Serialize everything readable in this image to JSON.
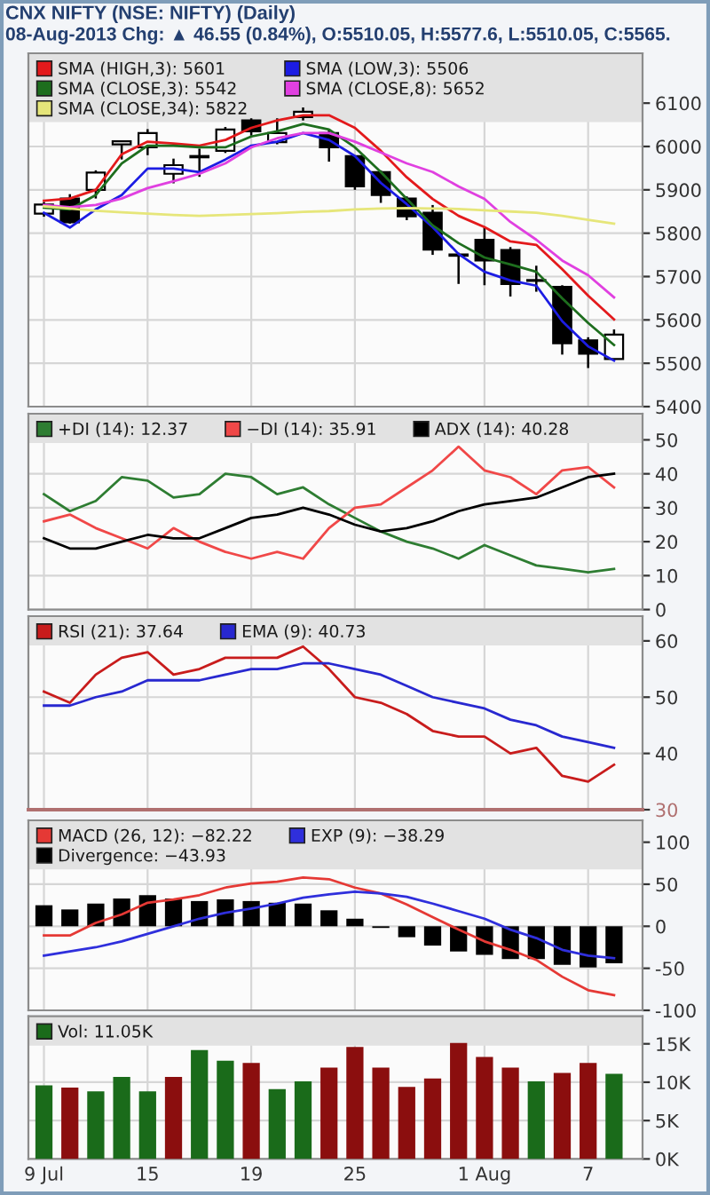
{
  "chart_data": [
    {
      "type": "candlestick",
      "title": "CNX NIFTY (NSE: NIFTY) (Daily)",
      "subtitle": "08-Aug-2013 Chg: ▲ 46.55 (0.84%), O:5510.05, H:5577.6, L:5510.05, C:5565.",
      "categories": [
        null,
        null,
        null,
        null,
        null,
        null,
        null,
        null,
        null,
        null,
        null,
        null,
        null,
        null,
        null,
        null,
        null,
        null,
        null,
        null,
        null,
        null,
        null
      ],
      "ohlc": [
        [
          5845,
          5872,
          5838,
          5866
        ],
        [
          5880,
          5890,
          5822,
          5825
        ],
        [
          5900,
          5945,
          5880,
          5940
        ],
        [
          6005,
          6012,
          5970,
          6012
        ],
        [
          5998,
          6040,
          5980,
          6031
        ],
        [
          5937,
          5972,
          5915,
          5957
        ],
        [
          5975,
          5995,
          5930,
          5978
        ],
        [
          5990,
          6045,
          5985,
          6039
        ],
        [
          6060,
          6065,
          6025,
          6035
        ],
        [
          6010,
          6065,
          6005,
          6031
        ],
        [
          6068,
          6090,
          6060,
          6080
        ],
        [
          6031,
          6040,
          5965,
          5998
        ],
        [
          5978,
          5978,
          5900,
          5908
        ],
        [
          5941,
          5945,
          5870,
          5888
        ],
        [
          5880,
          5885,
          5830,
          5839
        ],
        [
          5847,
          5865,
          5750,
          5762
        ],
        [
          5751,
          5755,
          5683,
          5748
        ],
        [
          5785,
          5815,
          5680,
          5737
        ],
        [
          5761,
          5768,
          5654,
          5683
        ],
        [
          5692,
          5725,
          5665,
          5690
        ],
        [
          5676,
          5680,
          5520,
          5546
        ],
        [
          5553,
          5560,
          5489,
          5522
        ],
        [
          5510,
          5578,
          5510,
          5566
        ]
      ],
      "colors": [
        "#ffffff",
        "#000000",
        "#ffffff",
        "#ffffff",
        "#ffffff",
        "#ffffff",
        "#ffffff",
        "#ffffff",
        "#000000",
        "#ffffff",
        "#ffffff",
        "#000000",
        "#000000",
        "#000000",
        "#000000",
        "#000000",
        "#000000",
        "#000000",
        "#000000",
        "#000000",
        "#000000",
        "#000000",
        "#ffffff"
      ],
      "series": [
        {
          "name": "SMA (HIGH,3): 5601",
          "type": "line",
          "color": "#e31a1c",
          "values": [
            5875,
            5880,
            5900,
            5982,
            6011,
            6007,
            6002,
            6015,
            6043,
            6060,
            6072,
            6072,
            6043,
            5990,
            5929,
            5879,
            5840,
            5814,
            5781,
            5773,
            5717,
            5656,
            5601
          ]
        },
        {
          "name": "SMA (LOW,3): 5506",
          "type": "line",
          "color": "#1c1ce3",
          "values": [
            5847,
            5813,
            5855,
            5888,
            5949,
            5949,
            5941,
            5970,
            6002,
            6011,
            6031,
            6015,
            5978,
            5916,
            5867,
            5814,
            5752,
            5711,
            5691,
            5679,
            5597,
            5539,
            5506
          ]
        },
        {
          "name": "SMA (CLOSE,3): 5542",
          "type": "line",
          "color": "#1e6e1e",
          "values": [
            5859,
            5855,
            5888,
            5961,
            6002,
            6002,
            5998,
            5998,
            6023,
            6035,
            6052,
            6039,
            5998,
            5941,
            5879,
            5818,
            5777,
            5744,
            5728,
            5711,
            5650,
            5593,
            5542
          ]
        },
        {
          "name": "SMA (CLOSE,8): 5652",
          "type": "line",
          "color": "#e040e0",
          "values": [
            5865,
            5860,
            5865,
            5880,
            5904,
            5920,
            5937,
            5961,
            5998,
            6019,
            6031,
            6031,
            6011,
            5986,
            5961,
            5941,
            5908,
            5879,
            5826,
            5785,
            5737,
            5703,
            5652
          ]
        },
        {
          "name": "SMA (CLOSE,34): 5822",
          "type": "line",
          "color": "#e6e67a",
          "values": [
            5862,
            5857,
            5852,
            5848,
            5845,
            5842,
            5840,
            5842,
            5844,
            5846,
            5849,
            5851,
            5855,
            5857,
            5858,
            5857,
            5856,
            5853,
            5850,
            5847,
            5840,
            5831,
            5822
          ]
        }
      ],
      "ylim": [
        5400,
        6215
      ],
      "yticks": [
        5400,
        5500,
        5600,
        5700,
        5800,
        5900,
        6000,
        6100
      ],
      "grid": true,
      "legend": "top left",
      "tick_labels": "y"
    },
    {
      "type": "line",
      "categories": [
        null,
        null,
        null,
        null,
        null,
        null,
        null,
        null,
        null,
        null,
        null,
        null,
        null,
        null,
        null,
        null,
        null,
        null,
        null,
        null,
        null,
        null,
        null
      ],
      "series": [
        {
          "name": "+DI (14): 12.37",
          "color": "#2e7d32",
          "values": [
            34,
            29,
            32,
            39,
            38,
            33,
            34,
            40,
            39,
            34,
            36,
            31,
            27,
            23,
            20,
            18,
            15,
            19,
            16,
            13,
            12,
            11,
            12
          ]
        },
        {
          "name": "−DI (14): 35.91",
          "color": "#f04848",
          "values": [
            26,
            28,
            24,
            21,
            18,
            24,
            20,
            17,
            15,
            17,
            15,
            24,
            30,
            31,
            36,
            41,
            48,
            41,
            39,
            34,
            41,
            42,
            36
          ]
        },
        {
          "name": "ADX (14): 40.28",
          "color": "#000000",
          "values": [
            21,
            18,
            18,
            20,
            22,
            21,
            21,
            24,
            27,
            28,
            30,
            28,
            25,
            23,
            24,
            26,
            29,
            31,
            32,
            33,
            36,
            39,
            40
          ]
        }
      ],
      "ylim": [
        0,
        57.7
      ],
      "yticks": [
        0,
        10,
        20,
        30,
        40,
        50
      ],
      "grid": true,
      "legend": "top left",
      "tick_labels": "y"
    },
    {
      "type": "line",
      "categories": [
        null,
        null,
        null,
        null,
        null,
        null,
        null,
        null,
        null,
        null,
        null,
        null,
        null,
        null,
        null,
        null,
        null,
        null,
        null,
        null,
        null,
        null,
        null
      ],
      "series": [
        {
          "name": "RSI (21): 37.64",
          "color": "#c81c1c",
          "values": [
            51,
            49,
            54,
            57,
            58,
            54,
            55,
            57,
            57,
            57,
            59,
            55,
            50,
            49,
            47,
            44,
            43,
            43,
            40,
            41,
            36,
            35,
            38
          ]
        },
        {
          "name": "EMA (9): 40.73",
          "color": "#2828d0",
          "values": [
            48.5,
            48.5,
            50,
            51,
            53,
            53,
            53,
            54,
            55,
            55,
            56,
            56,
            55,
            54,
            52,
            50,
            49,
            48,
            46,
            45,
            43,
            42,
            41
          ]
        }
      ],
      "ylim": [
        30,
        64.4
      ],
      "yticks": [
        30,
        40,
        50,
        60
      ],
      "ref_lines": [
        {
          "axis": "y",
          "value": 30,
          "color": "#b07070"
        }
      ],
      "grid": true,
      "legend": "top left",
      "tick_labels": "y"
    },
    {
      "type": "line",
      "categories": [
        null,
        null,
        null,
        null,
        null,
        null,
        null,
        null,
        null,
        null,
        null,
        null,
        null,
        null,
        null,
        null,
        null,
        null,
        null,
        null,
        null,
        null,
        null
      ],
      "series": [
        {
          "name": "MACD (26, 12): −82.22",
          "color": "#e53935",
          "values": [
            -11,
            -11,
            4,
            14,
            28,
            32,
            37,
            46,
            51,
            53,
            58,
            56,
            46,
            39,
            26,
            11,
            -4,
            -18,
            -28,
            -40,
            -60,
            -76,
            -82
          ]
        },
        {
          "name": "EXP (9): −38.29",
          "color": "#2f2fdc",
          "values": [
            -35,
            -30,
            -25,
            -18,
            -9,
            0,
            9,
            16,
            21,
            27,
            34,
            38,
            41,
            39,
            35,
            27,
            18,
            9,
            -4,
            -14,
            -28,
            -35,
            -38
          ]
        },
        {
          "name": "Divergence: −43.93",
          "type": "bar",
          "color": "#000000",
          "values": [
            25,
            20,
            27,
            33,
            37,
            33,
            30,
            32,
            30,
            28,
            27,
            19,
            9,
            -2,
            -13,
            -23,
            -30,
            -34,
            -39,
            -39,
            -46,
            -49,
            -44
          ]
        }
      ],
      "ylim": [
        -100,
        126
      ],
      "yticks": [
        -100,
        -50,
        0,
        50,
        100
      ],
      "grid": true,
      "legend": "top left",
      "tick_labels": "y"
    },
    {
      "type": "bar",
      "categories": [
        "9 Jul",
        null,
        null,
        null,
        "15",
        null,
        null,
        null,
        "19",
        null,
        null,
        null,
        "25",
        null,
        null,
        null,
        null,
        "1 Aug",
        null,
        null,
        null,
        "7",
        null
      ],
      "series": [
        {
          "name": "Vol: 11.05K",
          "color": "#1a6b1a",
          "values": [
            9.6,
            9.3,
            8.8,
            10.7,
            8.8,
            10.7,
            14.2,
            12.8,
            12.5,
            9.1,
            10.1,
            11.9,
            14.6,
            11.9,
            9.4,
            10.5,
            15.1,
            13.3,
            11.9,
            10.1,
            11.2,
            12.5,
            11.1
          ],
          "colors": [
            "#1a6b1a",
            "#8b0e0e",
            "#1a6b1a",
            "#1a6b1a",
            "#1a6b1a",
            "#8b0e0e",
            "#1a6b1a",
            "#1a6b1a",
            "#8b0e0e",
            "#1a6b1a",
            "#1a6b1a",
            "#8b0e0e",
            "#8b0e0e",
            "#8b0e0e",
            "#8b0e0e",
            "#8b0e0e",
            "#8b0e0e",
            "#8b0e0e",
            "#8b0e0e",
            "#1a6b1a",
            "#8b0e0e",
            "#8b0e0e",
            "#1a6b1a"
          ]
        }
      ],
      "ylim": [
        0,
        18.6
      ],
      "yticks": [
        {
          "value": 0,
          "label": "0K"
        },
        {
          "value": 5,
          "label": "5K"
        },
        {
          "value": 10,
          "label": "10K"
        },
        {
          "value": 15,
          "label": "15K"
        }
      ],
      "grid": true,
      "legend": "top left"
    }
  ]
}
